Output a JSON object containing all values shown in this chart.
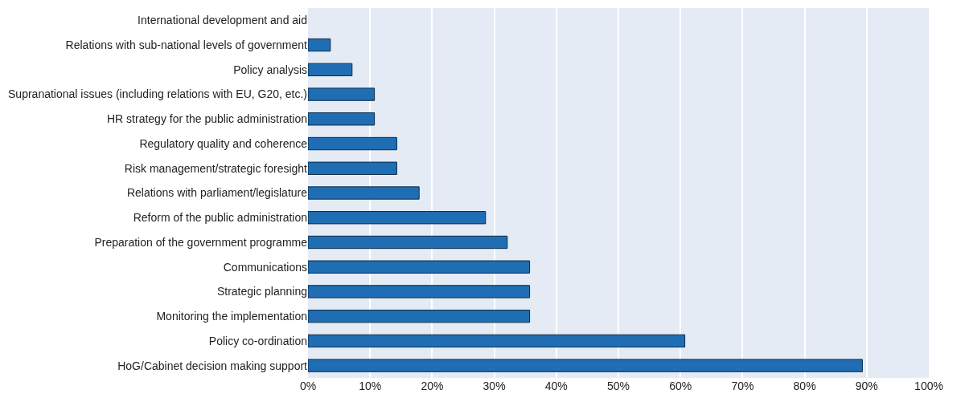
{
  "chart_data": {
    "type": "bar",
    "orientation": "horizontal",
    "categories": [
      "International development and aid",
      "Relations with sub-national levels of government",
      "Policy analysis",
      "Supranational issues (including relations with EU, G20, etc.)",
      "HR strategy for the public administration",
      "Regulatory quality and coherence",
      "Risk management/strategic foresight",
      "Relations with parliament/legislature",
      "Reform of the public administration",
      "Preparation of the government programme",
      "Communications",
      "Strategic planning",
      "Monitoring the implementation",
      "Policy co-ordination",
      "HoG/Cabinet decision making support"
    ],
    "values": [
      0,
      3.6,
      7.1,
      10.7,
      10.7,
      14.3,
      14.3,
      17.9,
      28.6,
      32.1,
      35.7,
      35.7,
      35.7,
      60.7,
      89.3
    ],
    "color": "#1f6eb4",
    "xlim": [
      0,
      100
    ],
    "xticks": [
      {
        "value": 0,
        "label": "0%"
      },
      {
        "value": 10,
        "label": "10%"
      },
      {
        "value": 20,
        "label": "20%"
      },
      {
        "value": 30,
        "label": "30%"
      },
      {
        "value": 40,
        "label": "40%"
      },
      {
        "value": 50,
        "label": "50%"
      },
      {
        "value": 60,
        "label": "60%"
      },
      {
        "value": 70,
        "label": "70%"
      },
      {
        "value": 80,
        "label": "80%"
      },
      {
        "value": 90,
        "label": "90%"
      },
      {
        "value": 100,
        "label": "100%"
      }
    ],
    "grid": "x",
    "legend": false
  }
}
